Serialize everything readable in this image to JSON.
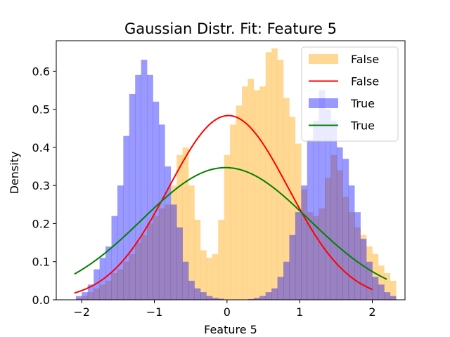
{
  "chart_data": {
    "type": "bar",
    "title": "Gaussian Distr. Fit: Feature 5",
    "xlabel": "Feature 5",
    "ylabel": "Density",
    "xlim": [
      -2.35,
      2.45
    ],
    "ylim": [
      0,
      0.68
    ],
    "xticks": [
      -2,
      -1,
      0,
      1,
      2
    ],
    "xtick_labels": [
      "−2",
      "−1",
      "0",
      "1",
      "2"
    ],
    "yticks": [
      0.0,
      0.1,
      0.2,
      0.3,
      0.4,
      0.5,
      0.6
    ],
    "ytick_labels": [
      "0.0",
      "0.1",
      "0.2",
      "0.3",
      "0.4",
      "0.5",
      "0.6"
    ],
    "grid": false,
    "legend_position": "top-right",
    "series": [
      {
        "name": "False",
        "kind": "histogram",
        "color": "#FFA500",
        "alpha": 0.42,
        "bin_start": -2.08,
        "bin_width": 0.0816,
        "values": [
          0.005,
          0.01,
          0.02,
          0.03,
          0.04,
          0.05,
          0.07,
          0.08,
          0.1,
          0.12,
          0.15,
          0.17,
          0.2,
          0.22,
          0.24,
          0.25,
          0.3,
          0.38,
          0.4,
          0.3,
          0.21,
          0.13,
          0.11,
          0.12,
          0.21,
          0.38,
          0.46,
          0.51,
          0.56,
          0.58,
          0.55,
          0.56,
          0.65,
          0.66,
          0.63,
          0.53,
          0.48,
          0.41,
          0.29,
          0.23,
          0.22,
          0.24,
          0.32,
          0.38,
          0.34,
          0.27,
          0.23,
          0.19,
          0.17,
          0.14,
          0.12,
          0.09,
          0.07,
          0.05
        ]
      },
      {
        "name": "True",
        "kind": "histogram",
        "color": "#0000FF",
        "alpha": 0.4,
        "bin_start": -2.08,
        "bin_width": 0.0816,
        "values": [
          0.01,
          0.02,
          0.04,
          0.08,
          0.11,
          0.14,
          0.22,
          0.3,
          0.43,
          0.54,
          0.59,
          0.63,
          0.59,
          0.52,
          0.46,
          0.35,
          0.25,
          0.19,
          0.1,
          0.05,
          0.03,
          0.02,
          0.01,
          0.005,
          0.003,
          0.0,
          0.0,
          0.0,
          0.0,
          0.002,
          0.005,
          0.01,
          0.02,
          0.03,
          0.06,
          0.1,
          0.17,
          0.23,
          0.3,
          0.42,
          0.47,
          0.55,
          0.5,
          0.47,
          0.4,
          0.37,
          0.3,
          0.23,
          0.16,
          0.1,
          0.06,
          0.04,
          0.02,
          0.01
        ]
      },
      {
        "name": "False",
        "kind": "line",
        "color": "#FF0000",
        "mean": 0.02,
        "std": 0.825,
        "xrange": [
          -2.1,
          2.0
        ]
      },
      {
        "name": "True",
        "kind": "line",
        "color": "#008000",
        "mean": -0.02,
        "std": 1.15,
        "xrange": [
          -2.1,
          2.2
        ]
      }
    ],
    "legend": [
      {
        "label": "False",
        "kind": "patch",
        "color": "#FFA500",
        "alpha": 0.42
      },
      {
        "label": "False",
        "kind": "line",
        "color": "#FF0000"
      },
      {
        "label": "True",
        "kind": "patch",
        "color": "#0000FF",
        "alpha": 0.4
      },
      {
        "label": "True",
        "kind": "line",
        "color": "#008000"
      }
    ]
  }
}
